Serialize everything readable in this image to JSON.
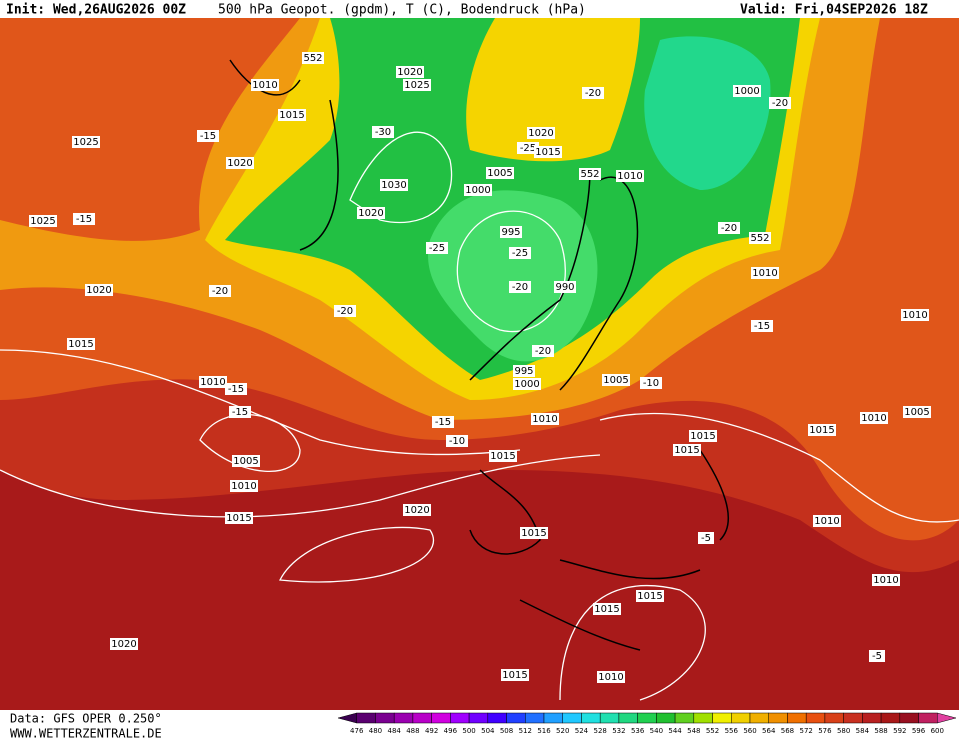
{
  "header": {
    "init": "Init: Wed,26AUG2026 00Z",
    "title": "500 hPa Geopot. (gpdm), T (C), Bodendruck (hPa)",
    "valid": "Valid: Fri,04SEP2026 18Z"
  },
  "footer": {
    "source": "Data: GFS OPER 0.250°",
    "website": "WWW.WETTERZENTRALE.DE"
  },
  "colorbar": {
    "labels": [
      476,
      480,
      484,
      488,
      492,
      496,
      500,
      504,
      508,
      512,
      516,
      520,
      524,
      528,
      532,
      536,
      540,
      544,
      548,
      552,
      556,
      560,
      564,
      568,
      572,
      576,
      580,
      584,
      588,
      592,
      596,
      600
    ],
    "colors": [
      "#3a0050",
      "#5a0070",
      "#7a0090",
      "#9a00b0",
      "#b800c8",
      "#d000e0",
      "#a000ff",
      "#7000ff",
      "#4000ff",
      "#2040ff",
      "#2070ff",
      "#20a0ff",
      "#20c8ff",
      "#20e0e0",
      "#20e0b0",
      "#20d880",
      "#20d050",
      "#20c030",
      "#60d020",
      "#a0e000",
      "#f0f000",
      "#f0d000",
      "#f0b000",
      "#f09000",
      "#f07000",
      "#e85010",
      "#d84018",
      "#c83020",
      "#b82020",
      "#a81818",
      "#981020",
      "#c02060",
      "#e040a0"
    ]
  },
  "isobar_labels": [
    1010,
    1015,
    552,
    1020,
    1025,
    1025,
    -15,
    1020,
    1025,
    -15,
    1020,
    -20,
    1015,
    -20,
    -30,
    1030,
    1020,
    1005,
    1000,
    995,
    -25,
    -25,
    -20,
    990,
    -20,
    995,
    1000,
    1010,
    1005,
    -10,
    -20,
    1020,
    -25,
    1015,
    552,
    1010,
    1000,
    -20,
    -20,
    552,
    1010,
    -15,
    1010,
    1010,
    -15,
    -15,
    1005,
    1010,
    1015,
    -15,
    -10,
    1015,
    1015,
    1015,
    1015,
    1010,
    1005,
    1020,
    1015,
    -5,
    1010,
    1010,
    1015,
    1015,
    1020,
    -5,
    1015,
    1010
  ]
}
